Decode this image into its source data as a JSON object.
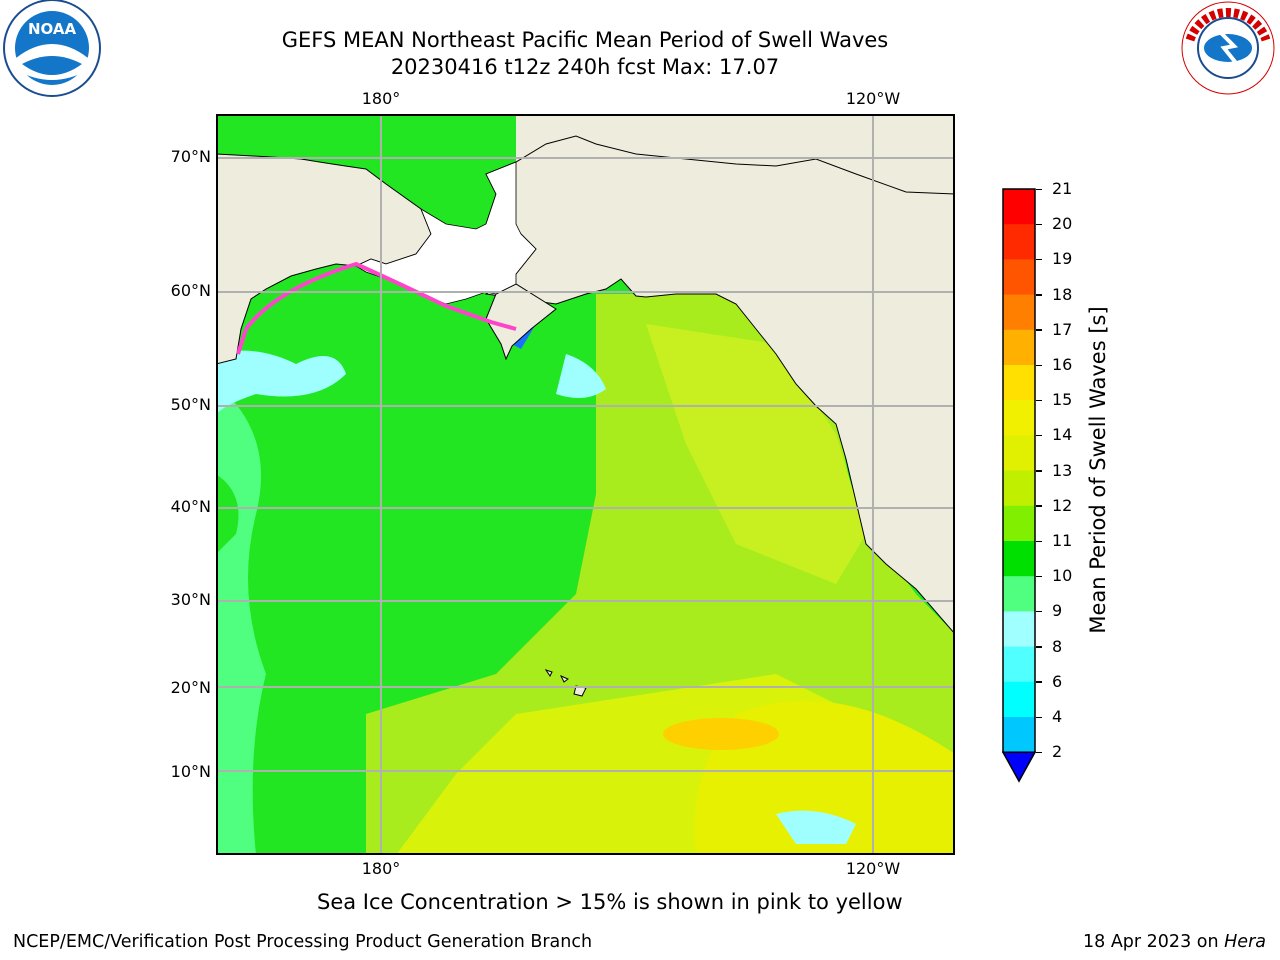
{
  "title": {
    "line1": "GEFS MEAN Northeast Pacific Mean Period of Swell Waves",
    "line2": "20230416 t12z 240h fcst   Max: 17.07"
  },
  "logos": {
    "left": {
      "name": "noaa-logo",
      "text": "NOAA"
    },
    "right": {
      "name": "nws-logo",
      "text": "NATIONAL WEATHER SERVICE"
    }
  },
  "map": {
    "lon_labels_top": [
      "180°",
      "120°W"
    ],
    "lon_labels_bottom": [
      "180°",
      "120°W"
    ],
    "lat_labels": [
      "70°N",
      "60°N",
      "50°N",
      "40°N",
      "30°N",
      "20°N",
      "10°N"
    ],
    "land_color": "#eeecdc",
    "ocean_color": "#22e622",
    "gridline_color": "#b0b0b0"
  },
  "colorbar": {
    "label": "Mean Period of Swell Waves [s]",
    "ticks": [
      "21",
      "20",
      "19",
      "18",
      "17",
      "16",
      "15",
      "14",
      "13",
      "12",
      "11",
      "10",
      "9",
      "8",
      "6",
      "4",
      "2"
    ],
    "colors": [
      "#ff0000",
      "#ff2a00",
      "#ff5500",
      "#ff8000",
      "#ffb000",
      "#ffe000",
      "#f0f000",
      "#e0f000",
      "#c0f000",
      "#80f000",
      "#00e000",
      "#50ff80",
      "#a0ffff",
      "#50ffff",
      "#00ffff",
      "#00c8ff",
      "#0070ff"
    ],
    "extend_color": "#0000ff"
  },
  "caption": "Sea Ice Concentration > 15% is shown in pink to yellow",
  "footer": {
    "left": "NCEP/EMC/Verification Post Processing Product Generation Branch",
    "right_prefix": "18 Apr 2023 on ",
    "right_host": "Hera"
  }
}
